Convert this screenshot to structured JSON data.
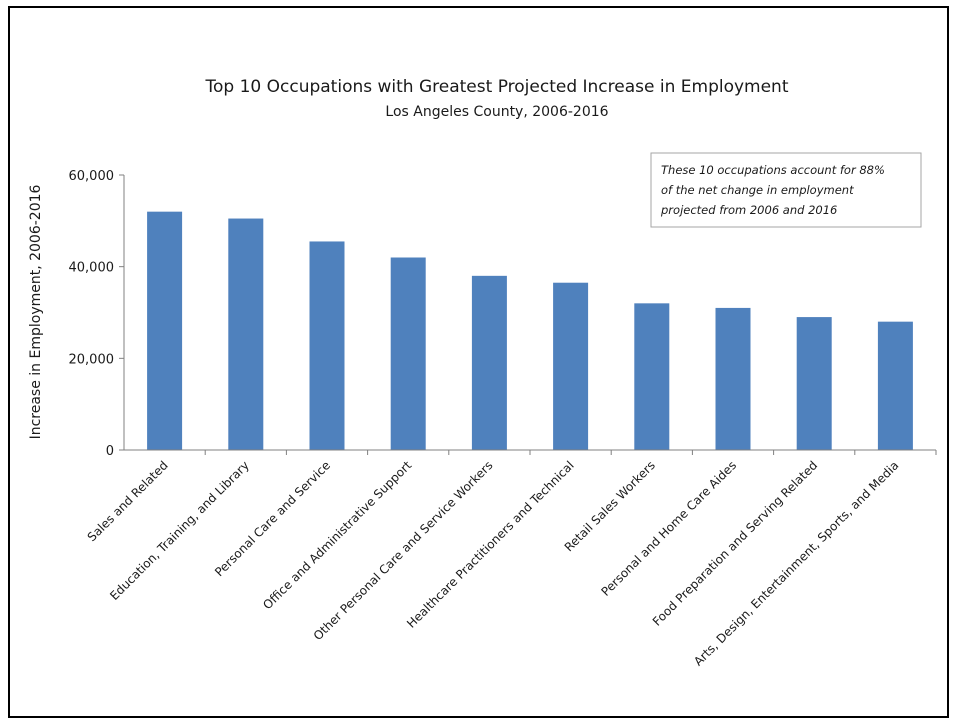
{
  "chart_data": {
    "type": "bar",
    "title": "Top 10 Occupations with Greatest Projected Increase in Employment",
    "subtitle": "Los Angeles County, 2006-2016",
    "ylabel": "Increase in Employment, 2006-2016",
    "xlabel": "",
    "ylim": [
      0,
      60000
    ],
    "yticks": [
      "0",
      "20,000",
      "40,000",
      "60,000"
    ],
    "ytick_values": [
      0,
      20000,
      40000,
      60000
    ],
    "grid": false,
    "categories": [
      "Sales and Related",
      "Education, Training, and Library",
      "Personal Care and Service",
      "Office and Administrative Support",
      "Other Personal Care and Service Workers",
      "Healthcare Practitioners and Technical",
      "Retail Sales Workers",
      "Personal and Home Care Aides",
      "Food Preparation and Serving Related",
      "Arts, Design, Entertainment, Sports, and Media"
    ],
    "values": [
      52000,
      50500,
      45500,
      42000,
      38000,
      36500,
      32000,
      31000,
      29000,
      28000
    ],
    "bar_color": "#4f81bd",
    "annotation": {
      "lines": [
        "These 10 occupations account for 88%",
        "of the net change in employment",
        "projected from 2006 and 2016"
      ],
      "placement": "top-right"
    }
  }
}
